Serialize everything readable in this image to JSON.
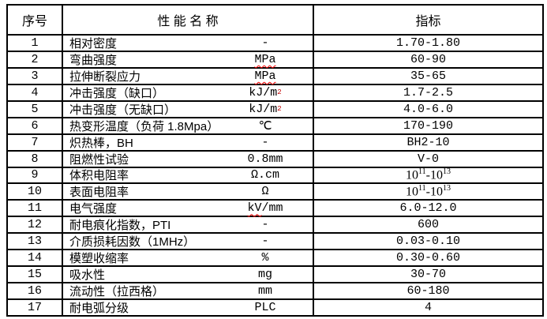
{
  "colors": {
    "background": "#ffffff",
    "text": "#000000",
    "border": "#000000",
    "squiggle": "#ff0000",
    "superscript": "#c00000"
  },
  "header": {
    "no": "序号",
    "name": "性 能 名 称",
    "value": "指标"
  },
  "rows": [
    {
      "no": "1",
      "name": "相对密度",
      "unit": {
        "plain": "-"
      },
      "value": "1.70-1.80"
    },
    {
      "no": "2",
      "name": "弯曲强度",
      "unit": {
        "squiggle": "MPa"
      },
      "value": "60-90"
    },
    {
      "no": "3",
      "name": "拉伸断裂应力",
      "unit": {
        "squiggle": "MPa"
      },
      "value": "35-65"
    },
    {
      "no": "4",
      "name": "冲击强度（缺口）",
      "unit": {
        "plain": "kJ/m",
        "sup": "2"
      },
      "value": "1.7-2.5"
    },
    {
      "no": "5",
      "name": "冲击强度（无缺口）",
      "unit": {
        "plain": "kJ/m",
        "sup": "2"
      },
      "value": "4.0-6.0"
    },
    {
      "no": "6",
      "name": "热变形温度（负荷 1.8Mpa）",
      "unit": {
        "plain": "℃"
      },
      "value": "170-190"
    },
    {
      "no": "7",
      "name": "炽热棒，BH",
      "unit": {
        "plain": "-"
      },
      "value": "BH2-10"
    },
    {
      "no": "8",
      "name": "阻燃性试验",
      "unit": {
        "plain": "0.8mm"
      },
      "value": "V-0"
    },
    {
      "no": "9",
      "name": "体积电阻率",
      "unit": {
        "plain": "Ω.cm"
      },
      "value_parts": [
        "10",
        "11",
        "-10",
        "13"
      ]
    },
    {
      "no": "10",
      "name": "表面电阻率",
      "unit": {
        "plain": "Ω"
      },
      "value_parts": [
        "10",
        "11",
        "-10",
        "13"
      ]
    },
    {
      "no": "11",
      "name": "电气强度",
      "unit": {
        "squiggle": "kV",
        "post": "/mm"
      },
      "value": "6.0-12.0"
    },
    {
      "no": "12",
      "name": "耐电痕化指数，PTI",
      "unit": {
        "plain": "-"
      },
      "value": "600"
    },
    {
      "no": "13",
      "name": "介质损耗因数（1MHz）",
      "unit": {
        "plain": "-"
      },
      "value": "0.03-0.10"
    },
    {
      "no": "14",
      "name": "模塑收缩率",
      "unit": {
        "plain": "%"
      },
      "value": "0.30-0.60"
    },
    {
      "no": "15",
      "name": "吸水性",
      "unit": {
        "plain": "mg"
      },
      "value": "30-70"
    },
    {
      "no": "16",
      "name": "流动性（拉西格）",
      "unit": {
        "plain": "mm"
      },
      "value": "60-180"
    },
    {
      "no": "17",
      "name": "耐电弧分级",
      "unit": {
        "plain": "PLC"
      },
      "value": "4"
    }
  ]
}
